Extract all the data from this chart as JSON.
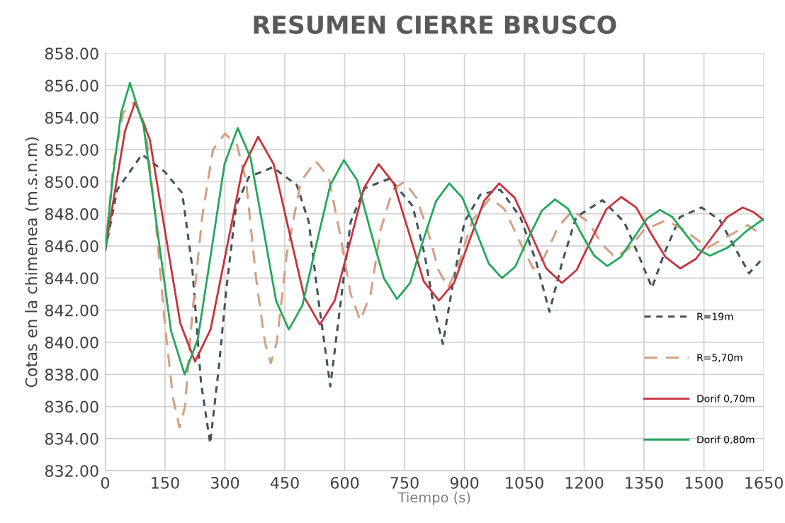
{
  "chart_data": {
    "type": "line",
    "title": "RESUMEN CIERRE BRUSCO",
    "xlabel": "Tiempo (s)",
    "ylabel": "Cotas en la chimenea (m.s.n.m)",
    "xlim": [
      0,
      1650
    ],
    "xticks": [
      0,
      150,
      300,
      450,
      600,
      750,
      900,
      1050,
      1200,
      1350,
      1500,
      1650
    ],
    "ylim": [
      832,
      858
    ],
    "yticks": [
      {
        "value": 832,
        "label": "832.00"
      },
      {
        "value": 834,
        "label": "834.00"
      },
      {
        "value": 836,
        "label": "836.00"
      },
      {
        "value": 838,
        "label": "838.00"
      },
      {
        "value": 840,
        "label": "840.00"
      },
      {
        "value": 842,
        "label": "842.00"
      },
      {
        "value": 844,
        "label": "844.00"
      },
      {
        "value": 846,
        "label": "846.00"
      },
      {
        "value": 848,
        "label": "848.00"
      },
      {
        "value": 850,
        "label": "850.00"
      },
      {
        "value": 852,
        "label": "852.00"
      },
      {
        "value": 854,
        "label": "854.00"
      },
      {
        "value": 856,
        "label": "856.00"
      },
      {
        "value": 858,
        "label": "858.00"
      }
    ],
    "grid": true,
    "legend": "right",
    "marker": "none",
    "series": [
      {
        "name": "R=19m",
        "color": "#44535a",
        "line_style": "dashed",
        "x": [
          0,
          30,
          92,
          150,
          193,
          218,
          240,
          263,
          285,
          303,
          328,
          360,
          420,
          480,
          510,
          535,
          564,
          590,
          615,
          650,
          713,
          770,
          800,
          825,
          846,
          870,
          900,
          940,
          990,
          1040,
          1080,
          1113,
          1145,
          1180,
          1246,
          1300,
          1335,
          1370,
          1400,
          1440,
          1494,
          1540,
          1575,
          1613,
          1650
        ],
        "values": [
          845.7,
          849.5,
          851.7,
          850.6,
          849.3,
          844.7,
          837.5,
          833.7,
          838.5,
          843.2,
          848.5,
          850.3,
          850.9,
          849.8,
          847.5,
          842.5,
          837.25,
          842.5,
          847.5,
          849.6,
          850.2,
          848.5,
          845.5,
          842.0,
          839.9,
          843.5,
          847.5,
          849.2,
          849.5,
          847.8,
          845.0,
          841.9,
          845.0,
          847.8,
          848.85,
          847.5,
          845.5,
          843.4,
          845.5,
          847.8,
          848.4,
          847.6,
          846.0,
          844.3,
          845.3
        ]
      },
      {
        "name": "R=5,70m",
        "color": "#d4a083",
        "line_style": "dashed",
        "x": [
          0,
          20,
          45,
          75,
          100,
          125,
          150,
          170,
          186,
          200,
          218,
          243,
          270,
          300,
          330,
          353,
          378,
          400,
          415,
          430,
          455,
          490,
          527,
          560,
          590,
          615,
          639,
          665,
          690,
          720,
          749,
          780,
          810,
          835,
          859,
          885,
          920,
          965,
          1000,
          1040,
          1072,
          1100,
          1135,
          1171,
          1210,
          1245,
          1278,
          1310,
          1350,
          1405,
          1450,
          1510,
          1560,
          1610,
          1650
        ],
        "values": [
          845.7,
          851.0,
          854.3,
          855.0,
          853.5,
          848.0,
          841.0,
          836.5,
          834.7,
          836.0,
          841.7,
          847.8,
          852.0,
          853.0,
          852.3,
          850.05,
          844.0,
          840.0,
          838.7,
          840.0,
          845.5,
          850.0,
          851.3,
          850.3,
          846.5,
          843.0,
          841.35,
          843.0,
          847.0,
          849.5,
          850.0,
          849.0,
          846.8,
          844.5,
          843.4,
          844.8,
          847.6,
          849.0,
          848.3,
          846.2,
          844.6,
          845.3,
          847.2,
          848.2,
          847.5,
          846.1,
          845.3,
          845.8,
          847.0,
          847.6,
          847.0,
          845.9,
          846.6,
          847.3,
          846.6
        ]
      },
      {
        "name": "Dorif 0,70m",
        "color": "#c8323c",
        "line_style": "solid",
        "x": [
          0,
          25,
          50,
          75,
          112,
          150,
          188,
          225,
          264,
          304,
          344,
          383,
          422,
          460,
          499,
          538,
          575,
          612,
          648,
          685,
          723,
          760,
          798,
          836,
          874,
          912,
          949,
          987,
          1026,
          1066,
          1105,
          1144,
          1181,
          1218,
          1256,
          1293,
          1330,
          1367,
          1404,
          1441,
          1480,
          1519,
          1558,
          1597,
          1625,
          1650
        ],
        "values": [
          845.7,
          849.5,
          853.2,
          854.95,
          852.6,
          846.9,
          841.2,
          838.8,
          840.8,
          845.8,
          850.8,
          852.8,
          851.1,
          847.0,
          842.8,
          841.1,
          842.6,
          846.1,
          849.6,
          851.1,
          849.9,
          846.9,
          843.8,
          842.6,
          843.7,
          846.3,
          848.8,
          849.9,
          849.0,
          846.8,
          844.6,
          843.7,
          844.5,
          846.4,
          848.3,
          849.05,
          848.4,
          846.8,
          845.3,
          844.6,
          845.2,
          846.5,
          847.8,
          848.4,
          848.1,
          847.6
        ]
      },
      {
        "name": "Dorif 0,80m",
        "color": "#22a85a",
        "line_style": "solid",
        "x": [
          0,
          20,
          40,
          62,
          96,
          130,
          165,
          199,
          232,
          266,
          299,
          332,
          364,
          396,
          428,
          460,
          494,
          529,
          564,
          598,
          631,
          664,
          698,
          731,
          764,
          796,
          829,
          862,
          895,
          928,
          961,
          994,
          1027,
          1060,
          1094,
          1127,
          1160,
          1192,
          1225,
          1258,
          1291,
          1324,
          1357,
          1390,
          1421,
          1452,
          1484,
          1515,
          1560,
          1605,
          1650
        ],
        "values": [
          845.7,
          850.5,
          854.3,
          856.15,
          853.5,
          847.1,
          840.7,
          838.0,
          840.2,
          845.7,
          851.1,
          853.35,
          851.5,
          847.1,
          842.6,
          840.8,
          842.3,
          846.1,
          849.8,
          851.35,
          850.1,
          847.0,
          844.0,
          842.7,
          843.7,
          846.3,
          848.8,
          849.9,
          849.0,
          847.0,
          844.9,
          844.0,
          844.7,
          846.5,
          848.2,
          848.9,
          848.3,
          846.8,
          845.4,
          844.75,
          845.3,
          846.5,
          847.7,
          848.25,
          847.8,
          846.8,
          845.8,
          845.4,
          845.9,
          846.9,
          847.7
        ]
      }
    ]
  }
}
